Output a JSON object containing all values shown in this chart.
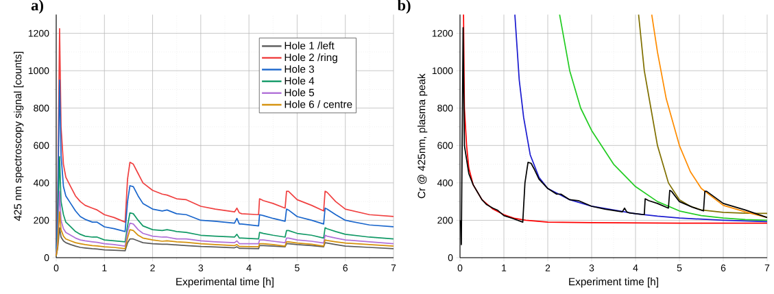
{
  "chart_data": [
    {
      "type": "line",
      "title": "a)",
      "xlabel": "Experimental time [h]",
      "ylabel": "425 nm spectroscopy signal [counts]",
      "x": [
        0,
        0.03,
        0.07,
        0.1,
        0.15,
        0.2,
        0.3,
        0.4,
        0.5,
        0.6,
        0.75,
        0.85,
        1.0,
        1.2,
        1.43,
        1.48,
        1.53,
        1.6,
        1.7,
        1.8,
        2.0,
        2.2,
        2.3,
        2.5,
        2.7,
        3.0,
        3.3,
        3.7,
        3.75,
        3.8,
        3.85,
        4.2,
        4.22,
        4.3,
        4.5,
        4.75,
        4.78,
        4.82,
        5.0,
        5.3,
        5.55,
        5.58,
        5.62,
        5.8,
        6.0,
        6.5,
        7.0
      ],
      "series": [
        {
          "name": "Hole 1 /left",
          "color": "#5a5a5a",
          "values": [
            10,
            50,
            160,
            110,
            90,
            80,
            70,
            62,
            55,
            52,
            48,
            46,
            42,
            40,
            37,
            80,
            100,
            100,
            90,
            80,
            75,
            72,
            72,
            68,
            65,
            60,
            57,
            53,
            58,
            50,
            50,
            48,
            65,
            65,
            62,
            58,
            75,
            75,
            70,
            65,
            58,
            80,
            78,
            70,
            62,
            55,
            48
          ]
        },
        {
          "name": "Hole 2 /ring",
          "color": "#f04040",
          "values": [
            70,
            300,
            1225,
            700,
            500,
            430,
            380,
            330,
            300,
            280,
            265,
            255,
            230,
            215,
            190,
            420,
            510,
            500,
            450,
            400,
            360,
            340,
            335,
            315,
            310,
            275,
            260,
            245,
            265,
            240,
            235,
            230,
            315,
            305,
            290,
            265,
            355,
            355,
            310,
            280,
            250,
            355,
            350,
            300,
            260,
            230,
            220
          ]
        },
        {
          "name": "Hole 3",
          "color": "#1a66cc",
          "values": [
            50,
            250,
            950,
            550,
            380,
            330,
            290,
            250,
            220,
            205,
            190,
            190,
            165,
            155,
            140,
            300,
            385,
            380,
            330,
            290,
            260,
            250,
            255,
            235,
            230,
            200,
            195,
            185,
            210,
            180,
            180,
            170,
            230,
            225,
            210,
            195,
            260,
            255,
            220,
            200,
            180,
            265,
            260,
            230,
            200,
            175,
            165
          ]
        },
        {
          "name": "Hole 4",
          "color": "#119966",
          "values": [
            30,
            150,
            540,
            300,
            230,
            190,
            165,
            140,
            125,
            115,
            110,
            110,
            95,
            90,
            85,
            170,
            240,
            235,
            200,
            170,
            150,
            145,
            150,
            140,
            135,
            120,
            115,
            110,
            125,
            105,
            105,
            100,
            135,
            130,
            120,
            110,
            145,
            145,
            130,
            120,
            105,
            160,
            155,
            140,
            125,
            110,
            100
          ]
        },
        {
          "name": "Hole 5",
          "color": "#b070d8",
          "values": [
            20,
            100,
            355,
            200,
            155,
            135,
            120,
            105,
            95,
            90,
            85,
            82,
            75,
            70,
            62,
            140,
            185,
            180,
            150,
            130,
            115,
            110,
            110,
            100,
            100,
            90,
            85,
            80,
            90,
            75,
            75,
            75,
            95,
            95,
            88,
            80,
            105,
            105,
            95,
            88,
            78,
            120,
            115,
            105,
            95,
            85,
            75
          ]
        },
        {
          "name": "Hole 6 / centre",
          "color": "#d4900a",
          "values": [
            10,
            60,
            245,
            150,
            115,
            100,
            90,
            80,
            75,
            70,
            65,
            63,
            58,
            55,
            48,
            105,
            150,
            145,
            120,
            105,
            95,
            88,
            90,
            85,
            82,
            75,
            70,
            65,
            70,
            60,
            60,
            58,
            75,
            75,
            70,
            62,
            85,
            85,
            78,
            72,
            62,
            95,
            92,
            85,
            78,
            70,
            62
          ]
        }
      ],
      "xlim": [
        0,
        7
      ],
      "ylim": [
        0,
        1300
      ],
      "xticks": [
        0,
        1,
        2,
        3,
        4,
        5,
        6,
        7
      ],
      "yticks": [
        0,
        200,
        400,
        600,
        800,
        1000,
        1200
      ],
      "grid": true,
      "legend": "top right"
    },
    {
      "type": "line",
      "title": "b)",
      "xlabel": "Experiment time [h]",
      "ylabel": "Cr @ 425nm, plasma peak",
      "series": [
        {
          "color": "#ff0000",
          "x": [
            0.08,
            0.1,
            0.15,
            0.2,
            0.3,
            0.5,
            0.75,
            1.0,
            1.25,
            1.5,
            2,
            3,
            4,
            5,
            7
          ],
          "values": [
            1300,
            800,
            600,
            480,
            390,
            310,
            260,
            230,
            210,
            200,
            190,
            187,
            186,
            185,
            185
          ]
        },
        {
          "color": "#1c1cd0",
          "x": [
            1.25,
            1.35,
            1.45,
            1.6,
            1.8,
            2.0,
            2.5,
            3,
            3.5,
            4,
            4.5,
            5,
            6,
            7
          ],
          "values": [
            1300,
            950,
            750,
            550,
            430,
            370,
            310,
            275,
            255,
            235,
            222,
            212,
            200,
            193
          ]
        },
        {
          "color": "#22cc22",
          "x": [
            2.27,
            2.5,
            2.75,
            3.0,
            3.5,
            4,
            4.5,
            5,
            5.5,
            6,
            6.5,
            7
          ],
          "values": [
            1300,
            1000,
            800,
            680,
            500,
            380,
            300,
            250,
            225,
            212,
            204,
            200
          ]
        },
        {
          "color": "#807000",
          "x": [
            4.07,
            4.2,
            4.35,
            4.5,
            4.75,
            5,
            5.25,
            5.5,
            6,
            6.5,
            7
          ],
          "values": [
            1300,
            1000,
            800,
            600,
            400,
            310,
            275,
            255,
            242,
            238,
            237
          ]
        },
        {
          "color": "#ff8c00",
          "x": [
            4.37,
            4.5,
            4.7,
            5,
            5.25,
            5.5,
            6,
            6.5,
            7
          ],
          "values": [
            1300,
            1100,
            850,
            600,
            460,
            370,
            280,
            245,
            215
          ]
        },
        {
          "color": "#000000",
          "x": [
            0.01,
            0.03,
            0.07,
            0.1,
            0.2,
            0.3,
            0.4,
            0.5,
            0.6,
            0.75,
            0.85,
            1.0,
            1.2,
            1.43,
            1.48,
            1.55,
            1.62,
            1.7,
            1.8,
            2.0,
            2.2,
            2.3,
            2.5,
            2.7,
            3.0,
            3.3,
            3.7,
            3.75,
            3.8,
            3.85,
            4.2,
            4.22,
            4.3,
            4.5,
            4.75,
            4.78,
            4.82,
            5.0,
            5.3,
            5.55,
            5.58,
            5.62,
            6.0,
            6.5,
            7.0
          ],
          "values": [
            200,
            70,
            1230,
            600,
            450,
            390,
            350,
            310,
            285,
            265,
            255,
            225,
            210,
            190,
            400,
            510,
            505,
            470,
            420,
            370,
            340,
            340,
            310,
            305,
            275,
            260,
            245,
            265,
            245,
            240,
            230,
            315,
            305,
            290,
            265,
            360,
            355,
            300,
            270,
            250,
            355,
            355,
            290,
            255,
            215
          ]
        }
      ],
      "xlim": [
        0,
        7
      ],
      "ylim": [
        0,
        1300
      ],
      "xticks": [
        0,
        1,
        2,
        3,
        4,
        5,
        6,
        7
      ],
      "yticks": [
        0,
        200,
        400,
        600,
        800,
        1000,
        1200
      ],
      "grid": true
    }
  ]
}
